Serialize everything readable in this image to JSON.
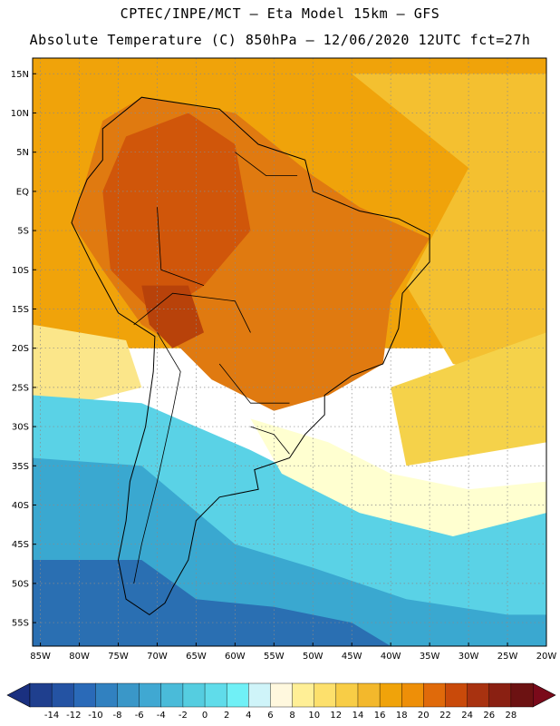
{
  "header": {
    "line1": "CPTEC/INPE/MCT –  Eta Model 15km – GFS",
    "line2": "Absolute Temperature (C) 850hPa – 12/06/2020 12UTC fct=27h"
  },
  "map": {
    "lon_range": [
      -86,
      -20
    ],
    "lat_range": [
      -58,
      17
    ],
    "lat_ticks": [
      {
        "v": 15,
        "label": "15N"
      },
      {
        "v": 10,
        "label": "10N"
      },
      {
        "v": 5,
        "label": "5N"
      },
      {
        "v": 0,
        "label": "EQ"
      },
      {
        "v": -5,
        "label": "5S"
      },
      {
        "v": -10,
        "label": "10S"
      },
      {
        "v": -15,
        "label": "15S"
      },
      {
        "v": -20,
        "label": "20S"
      },
      {
        "v": -25,
        "label": "25S"
      },
      {
        "v": -30,
        "label": "30S"
      },
      {
        "v": -35,
        "label": "35S"
      },
      {
        "v": -40,
        "label": "40S"
      },
      {
        "v": -45,
        "label": "45S"
      },
      {
        "v": -50,
        "label": "50S"
      },
      {
        "v": -55,
        "label": "55S"
      }
    ],
    "lon_ticks": [
      {
        "v": -85,
        "label": "85W"
      },
      {
        "v": -80,
        "label": "80W"
      },
      {
        "v": -75,
        "label": "75W"
      },
      {
        "v": -70,
        "label": "70W"
      },
      {
        "v": -65,
        "label": "65W"
      },
      {
        "v": -60,
        "label": "60W"
      },
      {
        "v": -55,
        "label": "55W"
      },
      {
        "v": -50,
        "label": "50W"
      },
      {
        "v": -45,
        "label": "45W"
      },
      {
        "v": -40,
        "label": "40W"
      },
      {
        "v": -35,
        "label": "35W"
      },
      {
        "v": -30,
        "label": "30W"
      },
      {
        "v": -25,
        "label": "25W"
      },
      {
        "v": -20,
        "label": "20W"
      }
    ],
    "regions": [
      {
        "name": "ocean-warm",
        "color": "#f0a30a",
        "poly": [
          [
            -86,
            17
          ],
          [
            -20,
            17
          ],
          [
            -20,
            -20
          ],
          [
            -86,
            -20
          ]
        ]
      },
      {
        "name": "atlantic-warm-band",
        "color": "#f4c030",
        "poly": [
          [
            -45,
            15
          ],
          [
            -20,
            15
          ],
          [
            -20,
            -25
          ],
          [
            -32,
            -22
          ],
          [
            -38,
            -12
          ],
          [
            -30,
            3
          ]
        ]
      },
      {
        "name": "south-atlantic-yellow",
        "color": "#f5d24a",
        "poly": [
          [
            -40,
            -25
          ],
          [
            -20,
            -18
          ],
          [
            -20,
            -32
          ],
          [
            -38,
            -35
          ]
        ]
      },
      {
        "name": "pacific-cool-edge",
        "color": "#fbe68a",
        "poly": [
          [
            -86,
            -17
          ],
          [
            -74,
            -19
          ],
          [
            -72,
            -25
          ],
          [
            -80,
            -27
          ],
          [
            -86,
            -26
          ]
        ]
      },
      {
        "name": "south-cold",
        "color": "#5ad2e6",
        "poly": [
          [
            -86,
            -26
          ],
          [
            -72,
            -27
          ],
          [
            -65,
            -30
          ],
          [
            -58,
            -33
          ],
          [
            -52,
            -36
          ],
          [
            -42,
            -40
          ],
          [
            -30,
            -42
          ],
          [
            -20,
            -40
          ],
          [
            -20,
            -58
          ],
          [
            -86,
            -58
          ]
        ]
      },
      {
        "name": "south-colder",
        "color": "#3aa8d0",
        "poly": [
          [
            -86,
            -34
          ],
          [
            -72,
            -35
          ],
          [
            -66,
            -40
          ],
          [
            -60,
            -45
          ],
          [
            -50,
            -48
          ],
          [
            -38,
            -52
          ],
          [
            -25,
            -54
          ],
          [
            -20,
            -54
          ],
          [
            -20,
            -58
          ],
          [
            -86,
            -58
          ]
        ]
      },
      {
        "name": "south-coldest",
        "color": "#2a6fb2",
        "poly": [
          [
            -86,
            -47
          ],
          [
            -72,
            -47
          ],
          [
            -65,
            -52
          ],
          [
            -55,
            -53
          ],
          [
            -45,
            -55
          ],
          [
            -40,
            -58
          ],
          [
            -86,
            -58
          ]
        ]
      },
      {
        "name": "cold-front-band",
        "color": "#ffffd0",
        "poly": [
          [
            -58,
            -29
          ],
          [
            -48,
            -32
          ],
          [
            -40,
            -36
          ],
          [
            -30,
            -38
          ],
          [
            -20,
            -37
          ],
          [
            -20,
            -41
          ],
          [
            -32,
            -44
          ],
          [
            -44,
            -41
          ],
          [
            -54,
            -36
          ]
        ]
      },
      {
        "name": "continent-hot",
        "color": "#e07a10",
        "poly": [
          [
            -77,
            9
          ],
          [
            -72,
            12
          ],
          [
            -60,
            10
          ],
          [
            -50,
            2
          ],
          [
            -44,
            -2
          ],
          [
            -35,
            -6
          ],
          [
            -40,
            -14
          ],
          [
            -41,
            -22
          ],
          [
            -48,
            -26
          ],
          [
            -55,
            -28
          ],
          [
            -63,
            -24
          ],
          [
            -67,
            -20
          ],
          [
            -72,
            -17
          ],
          [
            -77,
            -10
          ],
          [
            -81,
            -4
          ],
          [
            -79,
            2
          ]
        ]
      },
      {
        "name": "amazon-hotter",
        "color": "#d0560a",
        "poly": [
          [
            -74,
            7
          ],
          [
            -66,
            10
          ],
          [
            -60,
            6
          ],
          [
            -58,
            -5
          ],
          [
            -64,
            -12
          ],
          [
            -70,
            -16
          ],
          [
            -76,
            -10
          ],
          [
            -77,
            0
          ]
        ]
      },
      {
        "name": "andes-hottest",
        "color": "#b8420a",
        "poly": [
          [
            -72,
            -12
          ],
          [
            -66,
            -12
          ],
          [
            -64,
            -18
          ],
          [
            -68,
            -20
          ],
          [
            -71,
            -17
          ]
        ]
      }
    ],
    "coast": [
      [
        -77,
        8
      ],
      [
        -72,
        12
      ],
      [
        -62,
        10.5
      ],
      [
        -57,
        6
      ],
      [
        -51,
        4
      ],
      [
        -50,
        0
      ],
      [
        -44,
        -2.5
      ],
      [
        -39,
        -3.5
      ],
      [
        -35,
        -5.5
      ],
      [
        -35,
        -9
      ],
      [
        -38.5,
        -13
      ],
      [
        -39,
        -17.5
      ],
      [
        -41,
        -22
      ],
      [
        -45,
        -23.5
      ],
      [
        -48.5,
        -26
      ],
      [
        -48.5,
        -28.5
      ],
      [
        -51,
        -31
      ],
      [
        -53,
        -34
      ],
      [
        -57.5,
        -35.5
      ],
      [
        -57,
        -38
      ],
      [
        -62,
        -39
      ],
      [
        -65,
        -42
      ],
      [
        -66,
        -47
      ],
      [
        -68,
        -50.5
      ],
      [
        -69,
        -52.5
      ],
      [
        -71,
        -54
      ],
      [
        -74,
        -52
      ],
      [
        -75,
        -47
      ],
      [
        -74,
        -42
      ],
      [
        -73.5,
        -37
      ],
      [
        -71.5,
        -30
      ],
      [
        -70.5,
        -23
      ],
      [
        -70.3,
        -18.5
      ],
      [
        -75,
        -15.5
      ],
      [
        -78,
        -10
      ],
      [
        -80,
        -6
      ],
      [
        -81,
        -4
      ],
      [
        -80,
        -1
      ],
      [
        -79,
        1.5
      ],
      [
        -77,
        4
      ],
      [
        -77,
        8
      ]
    ],
    "borders": [
      [
        [
          -73,
          -17
        ],
        [
          -68,
          -13
        ],
        [
          -60,
          -14
        ],
        [
          -58,
          -18
        ]
      ],
      [
        [
          -60,
          5
        ],
        [
          -56,
          2
        ],
        [
          -52,
          2
        ]
      ],
      [
        [
          -70,
          -2
        ],
        [
          -69.5,
          -10
        ],
        [
          -64,
          -12
        ]
      ],
      [
        [
          -62,
          -22
        ],
        [
          -58,
          -27
        ],
        [
          -53,
          -27
        ]
      ],
      [
        [
          -58,
          -30
        ],
        [
          -55,
          -31
        ],
        [
          -53,
          -33.5
        ]
      ],
      [
        [
          -70,
          -18
        ],
        [
          -67,
          -23
        ],
        [
          -68,
          -28
        ],
        [
          -70,
          -37
        ],
        [
          -72,
          -45
        ],
        [
          -73,
          -50
        ]
      ]
    ]
  },
  "colorbar": {
    "ticks": [
      "-14",
      "-12",
      "-10",
      "-8",
      "-6",
      "-4",
      "-2",
      "0",
      "2",
      "4",
      "6",
      "8",
      "10",
      "12",
      "14",
      "16",
      "18",
      "20",
      "22",
      "24",
      "26",
      "28"
    ],
    "colors": [
      "#1f3f8e",
      "#2453a3",
      "#2a6ab8",
      "#3181c0",
      "#3a97c8",
      "#40a8d2",
      "#4abbd9",
      "#55cde0",
      "#60dcea",
      "#70f0f6",
      "#cff4f9",
      "#fff8de",
      "#ffef96",
      "#fde06c",
      "#f8cd46",
      "#f3b82c",
      "#f0a30a",
      "#ee8f08",
      "#e06a0a",
      "#c94a0a",
      "#a83210",
      "#8a2012",
      "#6c1212"
    ],
    "under_color": "#1a3080",
    "over_color": "#7a0a1a"
  }
}
